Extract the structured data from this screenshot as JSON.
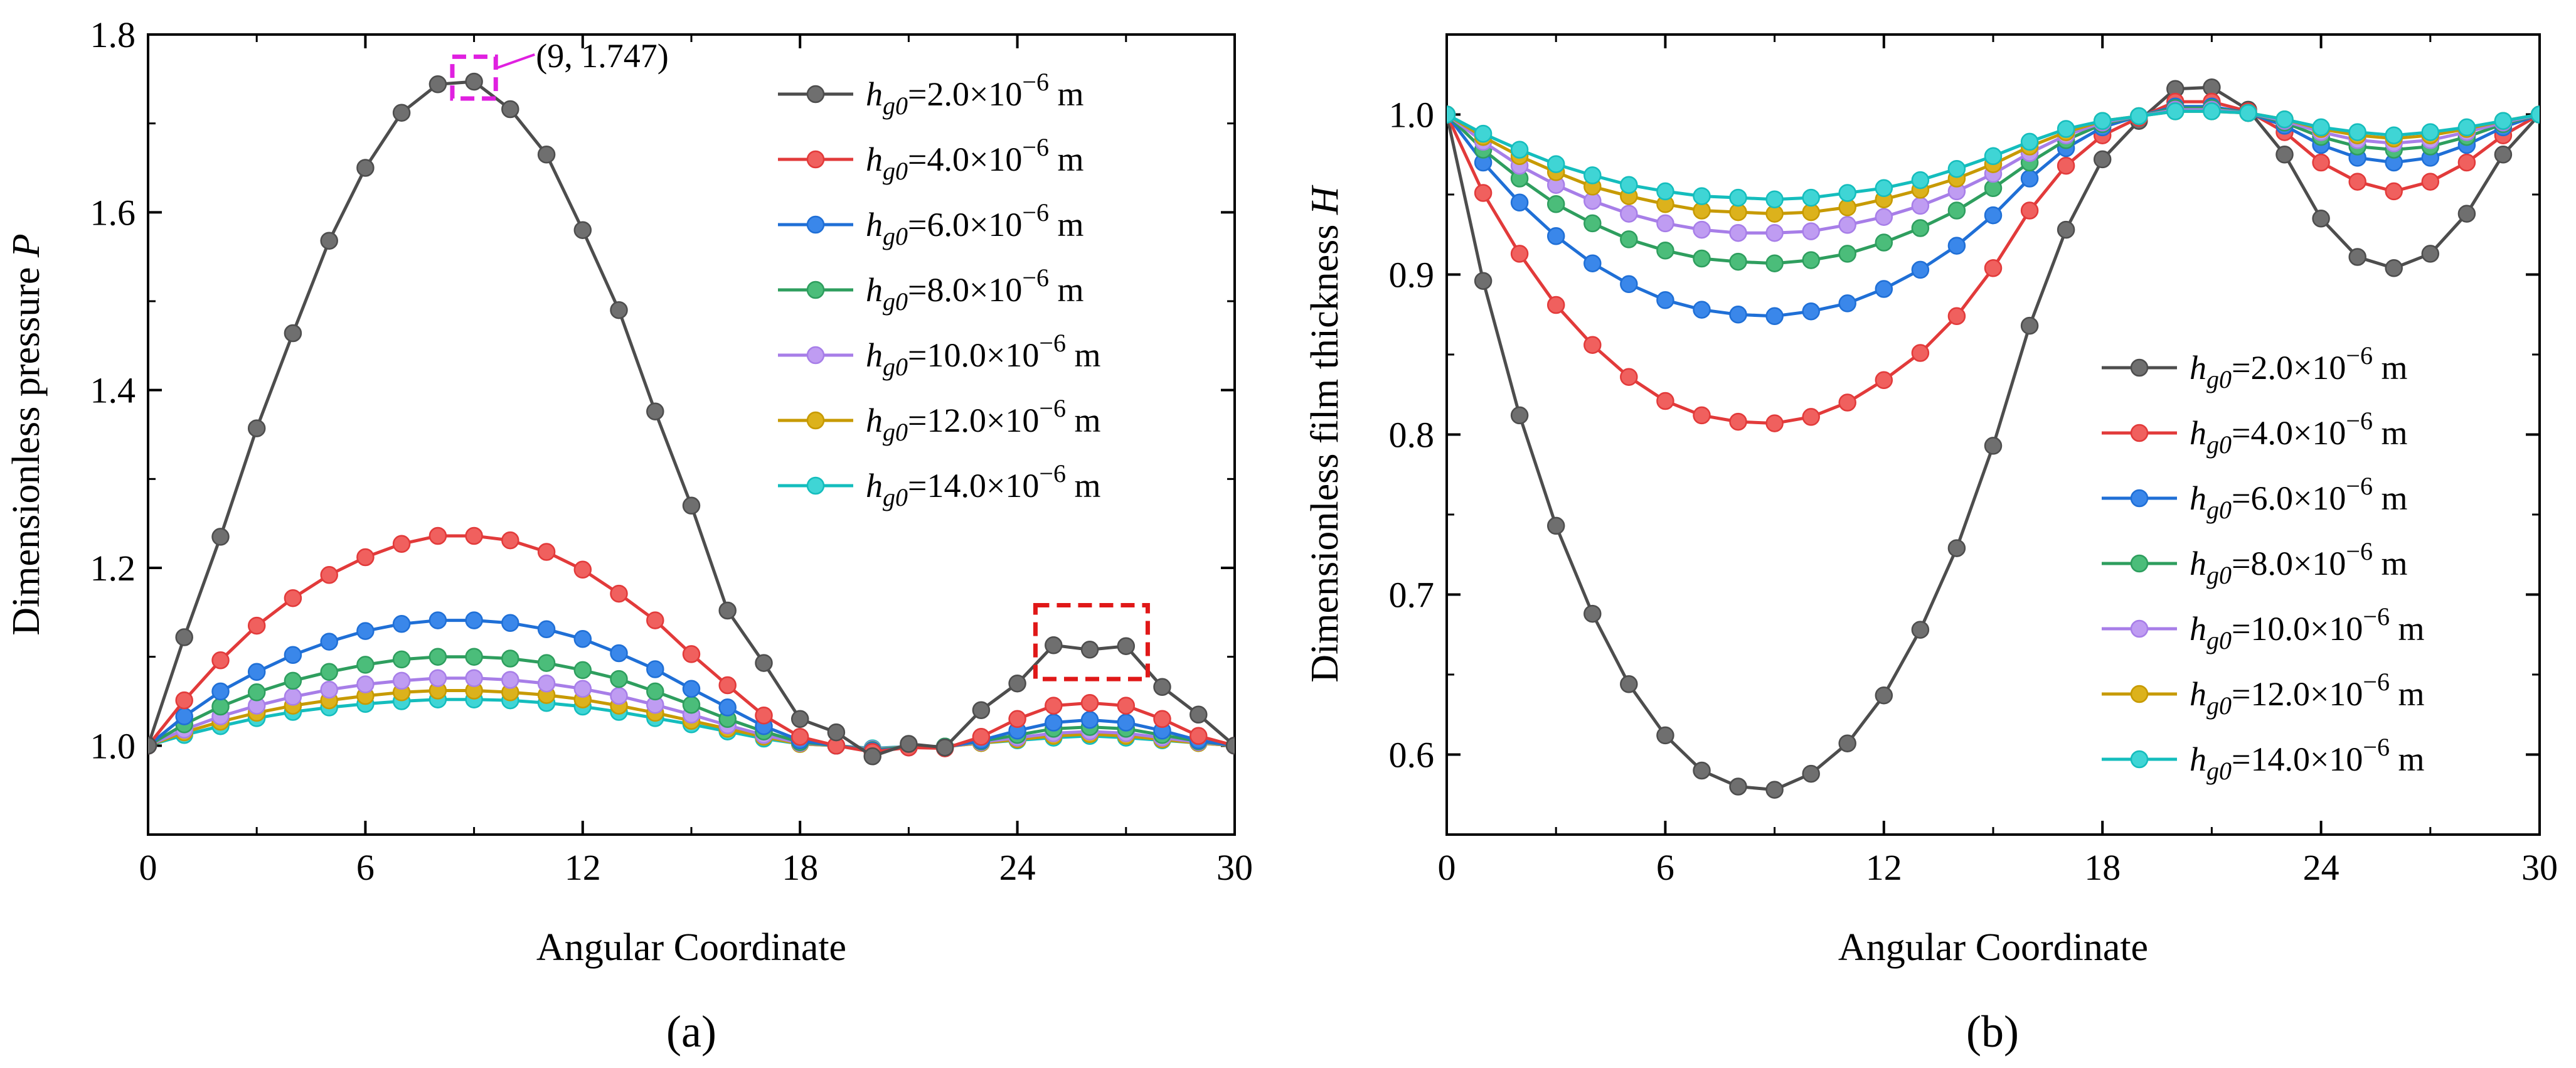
{
  "series_style": [
    {
      "color": "#4d4d4d",
      "marker": "#6f6f6f"
    },
    {
      "color": "#e23a3a",
      "marker": "#f0605e"
    },
    {
      "color": "#1f6fd6",
      "marker": "#3a87ea"
    },
    {
      "color": "#2e9e5e",
      "marker": "#4bbd7a"
    },
    {
      "color": "#a77ee8",
      "marker": "#bf9cf2"
    },
    {
      "color": "#c79a00",
      "marker": "#dcb21c"
    },
    {
      "color": "#14bdbd",
      "marker": "#3fd5d5"
    }
  ],
  "legend_items": [
    {
      "pre": "h",
      "sub": "g0",
      "mid": "=2.0×10",
      "sup": "−6",
      "post": " m"
    },
    {
      "pre": "h",
      "sub": "g0",
      "mid": "=4.0×10",
      "sup": "−6",
      "post": " m"
    },
    {
      "pre": "h",
      "sub": "g0",
      "mid": "=6.0×10",
      "sup": "−6",
      "post": " m"
    },
    {
      "pre": "h",
      "sub": "g0",
      "mid": "=8.0×10",
      "sup": "−6",
      "post": " m"
    },
    {
      "pre": "h",
      "sub": "g0",
      "mid": "=10.0×10",
      "sup": "−6",
      "post": " m"
    },
    {
      "pre": "h",
      "sub": "g0",
      "mid": "=12.0×10",
      "sup": "−6",
      "post": " m"
    },
    {
      "pre": "h",
      "sub": "g0",
      "mid": "=14.0×10",
      "sup": "−6",
      "post": " m"
    }
  ],
  "chart_data": [
    {
      "type": "line",
      "panel_label": "(a)",
      "title": "",
      "xlabel": "Angular Coordinate",
      "ylabel_text": "Dimensionless pressure ",
      "ylabel_symbol": "P",
      "xlim": [
        0,
        30
      ],
      "ylim": [
        0.9,
        1.8
      ],
      "xticks": [
        0,
        6,
        12,
        18,
        24,
        30
      ],
      "xtick_labels": [
        "0",
        "6",
        "12",
        "18",
        "24",
        "30"
      ],
      "yticks": [
        1.0,
        1.2,
        1.4,
        1.6,
        1.8
      ],
      "ytick_labels": [
        "1.0",
        "1.2",
        "1.4",
        "1.6",
        "1.8"
      ],
      "legend_position": "top-right",
      "annotation": {
        "text": "(9, 1.747)",
        "x": 9,
        "y": 1.747
      },
      "highlight_boxes": [
        {
          "color": "#e020e0",
          "x0": 8.4,
          "x1": 9.6,
          "y0": 1.728,
          "y1": 1.775
        },
        {
          "color": "#e01818",
          "x0": 24.5,
          "x1": 27.6,
          "y0": 1.075,
          "y1": 1.158
        }
      ],
      "x": [
        0,
        1,
        2,
        3,
        4,
        5,
        6,
        7,
        8,
        9,
        10,
        11,
        12,
        13,
        14,
        15,
        16,
        17,
        18,
        19,
        20,
        21,
        22,
        23,
        24,
        25,
        26,
        27,
        28,
        29,
        30
      ],
      "series": [
        {
          "name": "hg0=2.0×10−6 m",
          "values": [
            1.0,
            1.122,
            1.235,
            1.357,
            1.464,
            1.568,
            1.65,
            1.712,
            1.744,
            1.747,
            1.716,
            1.665,
            1.58,
            1.49,
            1.376,
            1.27,
            1.152,
            1.093,
            1.03,
            1.015,
            0.988,
            1.002,
            0.998,
            1.04,
            1.07,
            1.113,
            1.108,
            1.112,
            1.066,
            1.035,
            1.0
          ]
        },
        {
          "name": "hg0=4.0×10−6 m",
          "values": [
            1.0,
            1.051,
            1.096,
            1.135,
            1.166,
            1.192,
            1.212,
            1.227,
            1.236,
            1.236,
            1.231,
            1.218,
            1.198,
            1.171,
            1.141,
            1.103,
            1.068,
            1.034,
            1.01,
            1.0,
            0.993,
            0.998,
            0.997,
            1.01,
            1.03,
            1.045,
            1.048,
            1.045,
            1.03,
            1.011,
            1.0
          ]
        },
        {
          "name": "hg0=6.0×10−6 m",
          "values": [
            1.0,
            1.033,
            1.061,
            1.083,
            1.102,
            1.117,
            1.129,
            1.137,
            1.141,
            1.141,
            1.138,
            1.131,
            1.12,
            1.104,
            1.086,
            1.064,
            1.043,
            1.022,
            1.006,
            1.0,
            0.994,
            0.998,
            0.998,
            1.006,
            1.017,
            1.026,
            1.029,
            1.026,
            1.017,
            1.006,
            1.0
          ]
        },
        {
          "name": "hg0=8.0×10−6 m",
          "values": [
            1.0,
            1.024,
            1.044,
            1.06,
            1.073,
            1.083,
            1.091,
            1.097,
            1.1,
            1.1,
            1.098,
            1.093,
            1.085,
            1.075,
            1.061,
            1.046,
            1.03,
            1.016,
            1.004,
            1.0,
            0.995,
            0.999,
            0.999,
            1.005,
            1.012,
            1.019,
            1.021,
            1.019,
            1.012,
            1.005,
            1.0
          ]
        },
        {
          "name": "hg0=10.0×10−6 m",
          "values": [
            1.0,
            1.018,
            1.033,
            1.045,
            1.055,
            1.063,
            1.069,
            1.073,
            1.076,
            1.076,
            1.074,
            1.07,
            1.064,
            1.056,
            1.046,
            1.035,
            1.023,
            1.012,
            1.003,
            1.0,
            0.996,
            0.999,
            0.999,
            1.004,
            1.009,
            1.014,
            1.016,
            1.014,
            1.009,
            1.004,
            1.0
          ]
        },
        {
          "name": "hg0=12.0×10−6 m",
          "values": [
            1.0,
            1.015,
            1.027,
            1.037,
            1.045,
            1.051,
            1.056,
            1.06,
            1.062,
            1.062,
            1.06,
            1.057,
            1.052,
            1.045,
            1.037,
            1.028,
            1.019,
            1.01,
            1.002,
            1.0,
            0.996,
            0.999,
            0.999,
            1.003,
            1.007,
            1.011,
            1.013,
            1.011,
            1.007,
            1.003,
            1.0
          ]
        },
        {
          "name": "hg0=14.0×10−6 m",
          "values": [
            1.0,
            1.012,
            1.022,
            1.031,
            1.038,
            1.043,
            1.047,
            1.05,
            1.052,
            1.052,
            1.051,
            1.048,
            1.044,
            1.038,
            1.031,
            1.024,
            1.016,
            1.008,
            1.002,
            1.0,
            0.997,
            0.999,
            0.999,
            1.003,
            1.006,
            1.009,
            1.011,
            1.009,
            1.006,
            1.003,
            1.0
          ]
        }
      ]
    },
    {
      "type": "line",
      "panel_label": "(b)",
      "title": "",
      "xlabel": "Angular Coordinate",
      "ylabel_text": "Dimensionless film thickness ",
      "ylabel_symbol": "H",
      "xlim": [
        0,
        30
      ],
      "ylim": [
        0.55,
        1.05
      ],
      "xticks": [
        0,
        6,
        12,
        18,
        24,
        30
      ],
      "xtick_labels": [
        "0",
        "6",
        "12",
        "18",
        "24",
        "30"
      ],
      "yticks": [
        0.6,
        0.7,
        0.8,
        0.9,
        1.0
      ],
      "ytick_labels": [
        "0.6",
        "0.7",
        "0.8",
        "0.9",
        "1.0"
      ],
      "legend_position": "lower-right",
      "x": [
        0,
        1,
        2,
        3,
        4,
        5,
        6,
        7,
        8,
        9,
        10,
        11,
        12,
        13,
        14,
        15,
        16,
        17,
        18,
        19,
        20,
        21,
        22,
        23,
        24,
        25,
        26,
        27,
        28,
        29,
        30
      ],
      "series": [
        {
          "name": "hg0=2.0×10−6 m",
          "values": [
            1.0,
            0.896,
            0.812,
            0.743,
            0.688,
            0.644,
            0.612,
            0.59,
            0.58,
            0.578,
            0.588,
            0.607,
            0.637,
            0.678,
            0.729,
            0.793,
            0.868,
            0.928,
            0.972,
            0.996,
            1.016,
            1.017,
            1.003,
            0.975,
            0.935,
            0.911,
            0.904,
            0.913,
            0.938,
            0.975,
            1.0
          ]
        },
        {
          "name": "hg0=4.0×10−6 m",
          "values": [
            1.0,
            0.951,
            0.913,
            0.881,
            0.856,
            0.836,
            0.821,
            0.812,
            0.808,
            0.807,
            0.811,
            0.82,
            0.834,
            0.851,
            0.874,
            0.904,
            0.94,
            0.968,
            0.987,
            0.998,
            1.008,
            1.008,
            1.002,
            0.989,
            0.97,
            0.958,
            0.952,
            0.958,
            0.97,
            0.987,
            1.0
          ]
        },
        {
          "name": "hg0=6.0×10−6 m",
          "values": [
            1.0,
            0.97,
            0.945,
            0.924,
            0.907,
            0.894,
            0.884,
            0.878,
            0.875,
            0.874,
            0.877,
            0.882,
            0.891,
            0.903,
            0.918,
            0.937,
            0.96,
            0.979,
            0.992,
            0.999,
            1.005,
            1.005,
            1.001,
            0.993,
            0.981,
            0.973,
            0.97,
            0.973,
            0.981,
            0.992,
            1.0
          ]
        },
        {
          "name": "hg0=8.0×10−6 m",
          "values": [
            1.0,
            0.978,
            0.96,
            0.944,
            0.932,
            0.922,
            0.915,
            0.91,
            0.908,
            0.907,
            0.909,
            0.913,
            0.92,
            0.929,
            0.94,
            0.954,
            0.97,
            0.984,
            0.994,
            0.999,
            1.004,
            1.004,
            1.001,
            0.995,
            0.986,
            0.98,
            0.978,
            0.98,
            0.986,
            0.994,
            1.0
          ]
        },
        {
          "name": "hg0=10.0×10−6 m",
          "values": [
            1.0,
            0.983,
            0.968,
            0.956,
            0.946,
            0.938,
            0.932,
            0.928,
            0.926,
            0.926,
            0.927,
            0.931,
            0.936,
            0.943,
            0.952,
            0.963,
            0.976,
            0.987,
            0.995,
            0.999,
            1.003,
            1.003,
            1.001,
            0.996,
            0.989,
            0.984,
            0.982,
            0.984,
            0.989,
            0.995,
            1.0
          ]
        },
        {
          "name": "hg0=12.0×10−6 m",
          "values": [
            1.0,
            0.986,
            0.974,
            0.964,
            0.955,
            0.949,
            0.944,
            0.94,
            0.939,
            0.938,
            0.939,
            0.942,
            0.947,
            0.953,
            0.96,
            0.969,
            0.98,
            0.989,
            0.996,
            0.999,
            1.002,
            1.002,
            1.001,
            0.997,
            0.991,
            0.987,
            0.985,
            0.987,
            0.991,
            0.996,
            1.0
          ]
        },
        {
          "name": "hg0=14.0×10−6 m",
          "values": [
            1.0,
            0.988,
            0.978,
            0.969,
            0.962,
            0.956,
            0.952,
            0.949,
            0.948,
            0.947,
            0.948,
            0.951,
            0.954,
            0.959,
            0.966,
            0.974,
            0.983,
            0.991,
            0.996,
            0.999,
            1.002,
            1.002,
            1.001,
            0.997,
            0.992,
            0.989,
            0.987,
            0.989,
            0.992,
            0.996,
            1.0
          ]
        }
      ]
    }
  ]
}
